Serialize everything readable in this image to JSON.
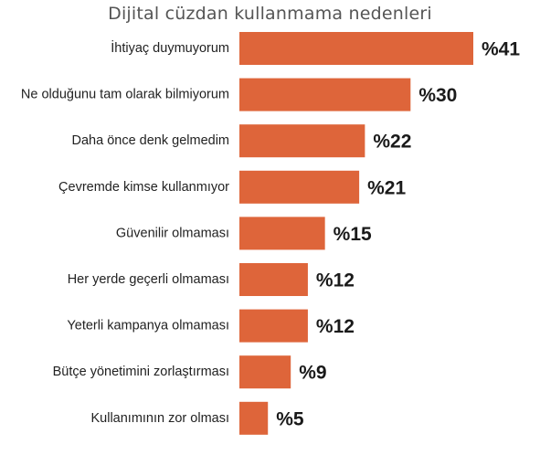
{
  "chart_data": {
    "type": "bar",
    "orientation": "horizontal",
    "title": "Dijital cüzdan kullanmama nedenleri",
    "categories": [
      "İhtiyaç duymuyorum",
      "Ne olduğunu tam olarak bilmiyorum",
      "Daha önce denk gelmedim",
      "Çevremde kimse kullanmıyor",
      "Güvenilir olmaması",
      "Her yerde geçerli olmaması",
      "Yeterli kampanya olmaması",
      "Bütçe yönetimini zorlaştırması",
      "Kullanımının zor olması"
    ],
    "values": [
      41,
      30,
      22,
      21,
      15,
      12,
      12,
      9,
      5
    ],
    "value_labels": [
      "%41",
      "%30",
      "%22",
      "%21",
      "%15",
      "%12",
      "%12",
      "%9",
      "%5"
    ],
    "xlim": [
      0,
      41
    ],
    "grid": false,
    "legend": "none",
    "bar_color": "#DE653A"
  }
}
